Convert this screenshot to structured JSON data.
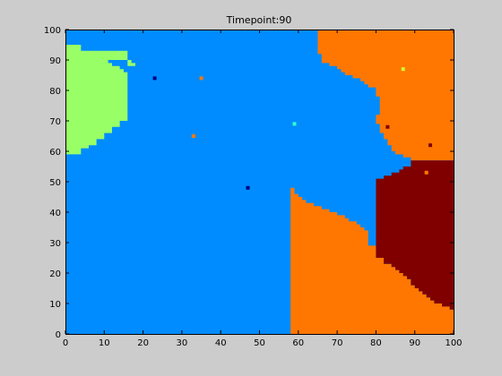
{
  "chart_data": {
    "type": "heatmap",
    "title": "Timepoint:90",
    "xlabel": "",
    "ylabel": "",
    "xlim": [
      0,
      100
    ],
    "ylim": [
      0,
      100
    ],
    "xticks": [
      0,
      10,
      20,
      30,
      40,
      50,
      60,
      70,
      80,
      90,
      100
    ],
    "yticks": [
      0,
      10,
      20,
      30,
      40,
      50,
      60,
      70,
      80,
      90,
      100
    ],
    "grid": false,
    "colors": {
      "blue": "#008cff",
      "green": "#99ff66",
      "orange": "#ff7700",
      "darkred": "#800000",
      "background": "#cccccc",
      "axes_bg": "#ffffff"
    },
    "regions": [
      {
        "color": "green",
        "polygon": [
          [
            0,
            59
          ],
          [
            4,
            59
          ],
          [
            4,
            61
          ],
          [
            6,
            61
          ],
          [
            6,
            62
          ],
          [
            8,
            62
          ],
          [
            8,
            64
          ],
          [
            10,
            64
          ],
          [
            10,
            66
          ],
          [
            12,
            66
          ],
          [
            12,
            68
          ],
          [
            14,
            68
          ],
          [
            14,
            70
          ],
          [
            16,
            70
          ],
          [
            16,
            86
          ],
          [
            15,
            86
          ],
          [
            15,
            87
          ],
          [
            14,
            87
          ],
          [
            14,
            88
          ],
          [
            12,
            88
          ],
          [
            12,
            89
          ],
          [
            11,
            89
          ],
          [
            11,
            90
          ],
          [
            17,
            90
          ],
          [
            17,
            89
          ],
          [
            18,
            89
          ],
          [
            18,
            88
          ],
          [
            16,
            88
          ],
          [
            16,
            93
          ],
          [
            4,
            93
          ],
          [
            4,
            95
          ],
          [
            0,
            95
          ]
        ]
      },
      {
        "color": "orange",
        "polygon": [
          [
            65,
            100
          ],
          [
            100,
            100
          ],
          [
            100,
            57
          ],
          [
            89,
            57
          ],
          [
            89,
            58
          ],
          [
            87,
            58
          ],
          [
            87,
            59
          ],
          [
            85,
            59
          ],
          [
            85,
            60
          ],
          [
            84,
            60
          ],
          [
            84,
            62
          ],
          [
            83,
            62
          ],
          [
            83,
            64
          ],
          [
            82,
            64
          ],
          [
            82,
            66
          ],
          [
            81,
            66
          ],
          [
            81,
            69
          ],
          [
            80,
            69
          ],
          [
            80,
            72
          ],
          [
            81,
            72
          ],
          [
            81,
            75
          ],
          [
            81,
            78
          ],
          [
            80,
            78
          ],
          [
            80,
            81
          ],
          [
            78,
            81
          ],
          [
            78,
            82
          ],
          [
            77,
            82
          ],
          [
            77,
            83
          ],
          [
            76,
            83
          ],
          [
            76,
            84
          ],
          [
            74,
            84
          ],
          [
            74,
            85
          ],
          [
            72,
            85
          ],
          [
            72,
            86
          ],
          [
            71,
            86
          ],
          [
            71,
            87
          ],
          [
            70,
            87
          ],
          [
            70,
            88
          ],
          [
            68,
            88
          ],
          [
            68,
            89
          ],
          [
            66,
            89
          ],
          [
            66,
            90
          ],
          [
            66,
            92
          ],
          [
            65,
            92
          ],
          [
            65,
            95
          ],
          [
            65,
            98
          ]
        ]
      },
      {
        "color": "orange",
        "polygon": [
          [
            100,
            0
          ],
          [
            100,
            8
          ],
          [
            99,
            8
          ],
          [
            99,
            9
          ],
          [
            97,
            9
          ],
          [
            97,
            10
          ],
          [
            95,
            10
          ],
          [
            95,
            11
          ],
          [
            94,
            11
          ],
          [
            94,
            12
          ],
          [
            93,
            12
          ],
          [
            93,
            13
          ],
          [
            92,
            13
          ],
          [
            92,
            14
          ],
          [
            91,
            14
          ],
          [
            91,
            15
          ],
          [
            90,
            15
          ],
          [
            90,
            16
          ],
          [
            89,
            16
          ],
          [
            89,
            18
          ],
          [
            88,
            18
          ],
          [
            88,
            19
          ],
          [
            87,
            19
          ],
          [
            87,
            20
          ],
          [
            86,
            20
          ],
          [
            86,
            21
          ],
          [
            85,
            21
          ],
          [
            85,
            22
          ],
          [
            84,
            22
          ],
          [
            84,
            23
          ],
          [
            82,
            23
          ],
          [
            82,
            25
          ],
          [
            80,
            25
          ],
          [
            80,
            29
          ],
          [
            78,
            29
          ],
          [
            78,
            34
          ],
          [
            77,
            34
          ],
          [
            77,
            35
          ],
          [
            76,
            35
          ],
          [
            76,
            36
          ],
          [
            75,
            36
          ],
          [
            75,
            37
          ],
          [
            73,
            37
          ],
          [
            73,
            38
          ],
          [
            72,
            38
          ],
          [
            72,
            39
          ],
          [
            70,
            39
          ],
          [
            70,
            40
          ],
          [
            68,
            40
          ],
          [
            68,
            41
          ],
          [
            66,
            41
          ],
          [
            66,
            42
          ],
          [
            64,
            42
          ],
          [
            64,
            43
          ],
          [
            62,
            43
          ],
          [
            62,
            44
          ],
          [
            61,
            44
          ],
          [
            61,
            45
          ],
          [
            60,
            45
          ],
          [
            60,
            46
          ],
          [
            59,
            46
          ],
          [
            59,
            48
          ],
          [
            58,
            48
          ],
          [
            58,
            0
          ]
        ]
      },
      {
        "color": "darkred",
        "polygon": [
          [
            80,
            25
          ],
          [
            80,
            29
          ],
          [
            80,
            37
          ],
          [
            80,
            44
          ],
          [
            80,
            51
          ],
          [
            82,
            51
          ],
          [
            82,
            52
          ],
          [
            84,
            52
          ],
          [
            84,
            53
          ],
          [
            86,
            53
          ],
          [
            86,
            54
          ],
          [
            87,
            54
          ],
          [
            87,
            55
          ],
          [
            89,
            55
          ],
          [
            89,
            57
          ],
          [
            100,
            57
          ],
          [
            100,
            8
          ],
          [
            99,
            8
          ],
          [
            99,
            9
          ],
          [
            97,
            9
          ],
          [
            97,
            10
          ],
          [
            95,
            10
          ],
          [
            95,
            11
          ],
          [
            94,
            11
          ],
          [
            94,
            12
          ],
          [
            93,
            12
          ],
          [
            93,
            13
          ],
          [
            92,
            13
          ],
          [
            92,
            14
          ],
          [
            91,
            14
          ],
          [
            91,
            15
          ],
          [
            90,
            15
          ],
          [
            90,
            16
          ],
          [
            89,
            16
          ],
          [
            89,
            18
          ],
          [
            88,
            18
          ],
          [
            88,
            19
          ],
          [
            87,
            19
          ],
          [
            87,
            20
          ],
          [
            86,
            20
          ],
          [
            86,
            21
          ],
          [
            85,
            21
          ],
          [
            85,
            22
          ],
          [
            84,
            22
          ],
          [
            84,
            23
          ],
          [
            82,
            23
          ],
          [
            82,
            25
          ]
        ]
      }
    ],
    "points": [
      {
        "x": 23,
        "y": 84,
        "color": "#000080"
      },
      {
        "x": 35,
        "y": 84,
        "color": "#ff7700"
      },
      {
        "x": 33,
        "y": 65,
        "color": "#ff7700"
      },
      {
        "x": 59,
        "y": 69,
        "color": "#33ffcc"
      },
      {
        "x": 47,
        "y": 48,
        "color": "#000080"
      },
      {
        "x": 87,
        "y": 87,
        "color": "#ccff33"
      },
      {
        "x": 83,
        "y": 68,
        "color": "#800000"
      },
      {
        "x": 94,
        "y": 62,
        "color": "#800000"
      },
      {
        "x": 93,
        "y": 53,
        "color": "#ff7700"
      }
    ]
  }
}
